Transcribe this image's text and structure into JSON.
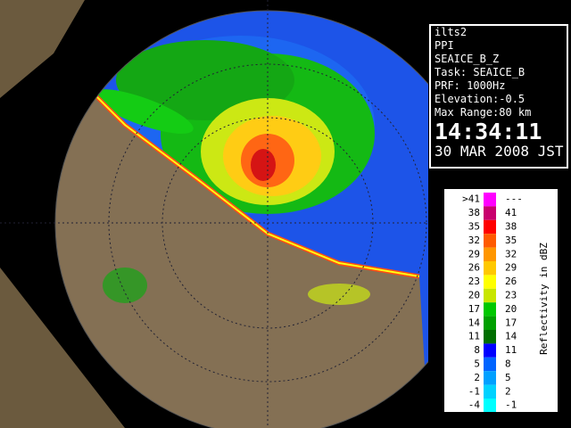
{
  "info": {
    "lines": [
      "ilts2",
      "PPI",
      "SEAICE_B_Z",
      "Task: SEAICE_B",
      "PRF: 1000Hz",
      "Elevation:-0.5",
      "Max Range:80 km"
    ],
    "time": "14:34:11",
    "date": "30 MAR 2008 JST"
  },
  "legend": {
    "title": "Reflectivity in dBZ",
    "rows": [
      {
        "low": ">41",
        "high": "---",
        "color": "#ff00ff"
      },
      {
        "low": "38",
        "high": "41",
        "color": "#c8006e"
      },
      {
        "low": "35",
        "high": "38",
        "color": "#ff0000"
      },
      {
        "low": "32",
        "high": "35",
        "color": "#ff5a00"
      },
      {
        "low": "29",
        "high": "32",
        "color": "#ff9600"
      },
      {
        "low": "26",
        "high": "29",
        "color": "#ffc800"
      },
      {
        "low": "23",
        "high": "26",
        "color": "#ffff00"
      },
      {
        "low": "20",
        "high": "23",
        "color": "#c8e600"
      },
      {
        "low": "17",
        "high": "20",
        "color": "#00c800"
      },
      {
        "low": "14",
        "high": "17",
        "color": "#00a000"
      },
      {
        "low": "11",
        "high": "14",
        "color": "#006e00"
      },
      {
        "low": "8",
        "high": "11",
        "color": "#0000ff"
      },
      {
        "low": "5",
        "high": "8",
        "color": "#0064ff"
      },
      {
        "low": "2",
        "high": "5",
        "color": "#00a0ff"
      },
      {
        "low": "-1",
        "high": "2",
        "color": "#00d2ff"
      },
      {
        "low": "-4",
        "high": "-1",
        "color": "#00ffff"
      }
    ]
  }
}
